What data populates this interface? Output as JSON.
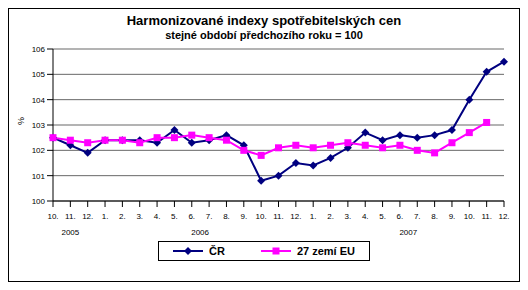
{
  "chart_data": {
    "type": "line",
    "title": "Harmonizované indexy spotřebitelských cen",
    "subtitle": "stejné období předchozího roku = 100",
    "y_label": "%",
    "categories": [
      "10.",
      "11.",
      "12.",
      "1.",
      "2.",
      "3.",
      "4.",
      "5.",
      "6.",
      "7.",
      "8.",
      "9.",
      "10.",
      "11.",
      "12.",
      "1.",
      "2.",
      "3.",
      "4.",
      "5.",
      "6.",
      "7.",
      "8.",
      "9.",
      "10.",
      "11.",
      "12."
    ],
    "category_groups": [
      {
        "label": "2005",
        "count": 3
      },
      {
        "label": "2006",
        "count": 12
      },
      {
        "label": "2007",
        "count": 12
      }
    ],
    "series": [
      {
        "name": "ČR",
        "color": "#000080",
        "marker": "diamond",
        "values": [
          102.5,
          102.2,
          101.9,
          102.4,
          102.4,
          102.4,
          102.3,
          102.8,
          102.3,
          102.4,
          102.6,
          102.2,
          100.8,
          101.0,
          101.5,
          101.4,
          101.7,
          102.1,
          102.7,
          102.4,
          102.6,
          102.5,
          102.6,
          102.8,
          104.0,
          105.1,
          105.5
        ]
      },
      {
        "name": "27 zemí EU",
        "color": "#ff00ff",
        "marker": "square",
        "values": [
          102.5,
          102.4,
          102.3,
          102.4,
          102.4,
          102.3,
          102.5,
          102.5,
          102.6,
          102.5,
          102.4,
          102.0,
          101.8,
          102.1,
          102.2,
          102.1,
          102.2,
          102.3,
          102.2,
          102.1,
          102.2,
          102.0,
          101.9,
          102.3,
          102.7,
          103.1,
          null
        ]
      }
    ],
    "ylim": [
      100,
      106
    ],
    "yticks": [
      100,
      101,
      102,
      103,
      104,
      105,
      106
    ],
    "grid": true,
    "legend": "bottom"
  }
}
